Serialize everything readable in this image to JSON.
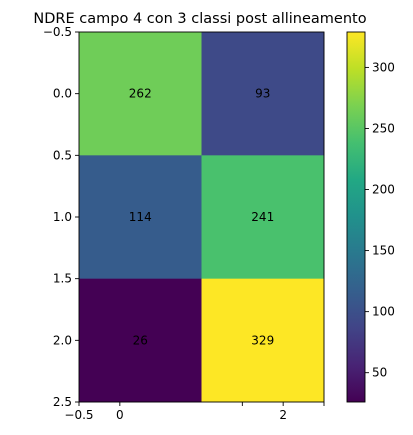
{
  "chart_data": {
    "type": "heatmap",
    "title": "NDRE campo 4 con 3 classi post allineamento",
    "xlabel": "",
    "ylabel": "",
    "matrix": [
      [
        262,
        93
      ],
      [
        114,
        241
      ],
      [
        26,
        329
      ]
    ],
    "x_range": [
      -0.5,
      2.5
    ],
    "y_range": [
      -0.5,
      2.5
    ],
    "x_tick_values": [
      -0.5,
      0,
      2
    ],
    "x_tick_labels": [
      "−0.5",
      "0",
      "2"
    ],
    "y_tick_values": [
      -0.5,
      0.0,
      0.5,
      1.0,
      1.5,
      2.0,
      2.5
    ],
    "y_tick_labels": [
      "−0.5",
      "0.0",
      "0.5",
      "1.0",
      "1.5",
      "2.0",
      "2.5"
    ],
    "colormap": "viridis",
    "colorbar": {
      "vmin": 26,
      "vmax": 329,
      "tick_values": [
        50,
        100,
        150,
        200,
        250,
        300
      ],
      "tick_labels": [
        "50",
        "100",
        "150",
        "200",
        "250",
        "300"
      ]
    },
    "grid": false
  }
}
